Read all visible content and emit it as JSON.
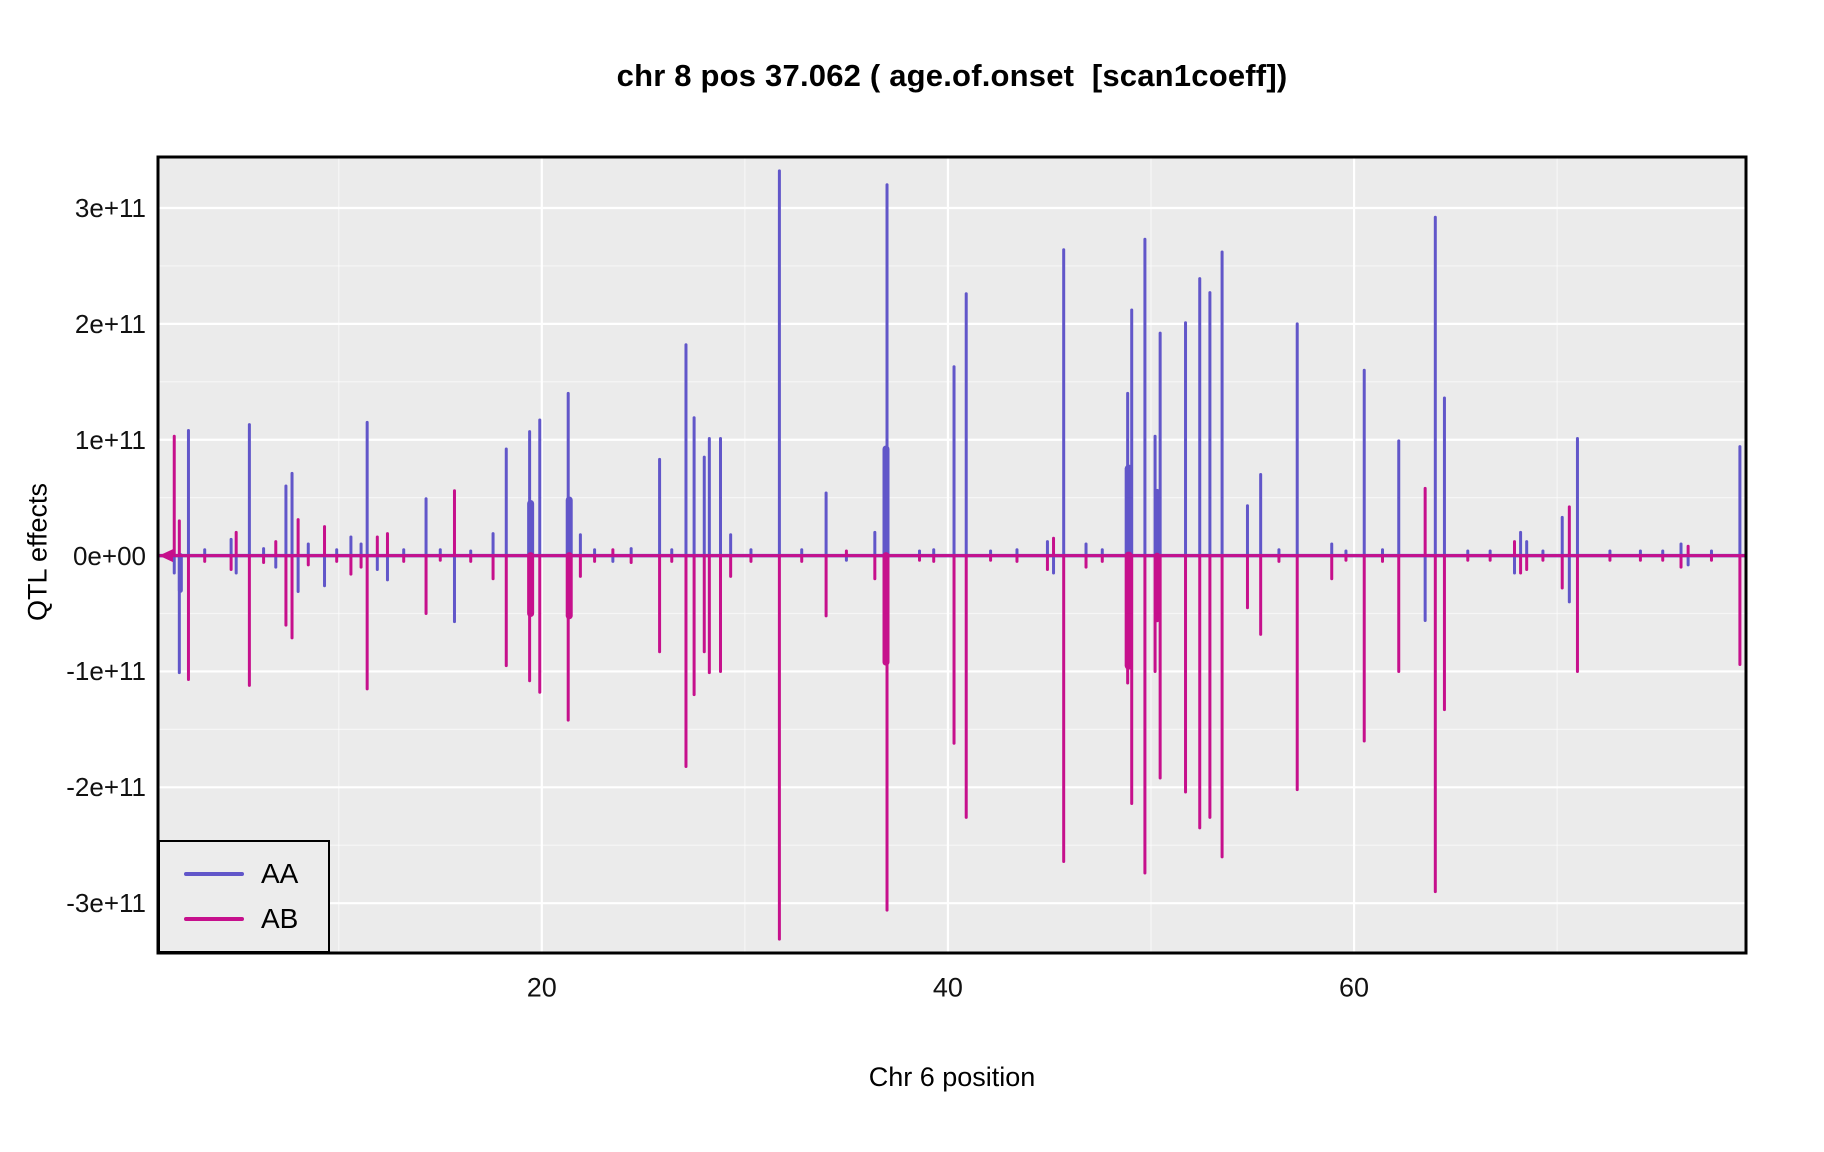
{
  "chart_data": {
    "type": "line",
    "title": "chr 8 pos 37.062 ( age.of.onset  [scan1coeff])",
    "xlabel": "Chr 6 position",
    "ylabel": "QTL effects",
    "value_scale": "values below are multiples of 1e+11",
    "xlim": [
      1.1,
      79.3
    ],
    "ylim": [
      -3.43,
      3.44
    ],
    "grid": "white major and minor gridlines on gray panel",
    "legend_position": "bottom-left",
    "colors": {
      "panel_bg": "#EBEBEB",
      "grid": "#FFFFFF",
      "border": "#000000",
      "outer_bg": "#FFFFFF"
    },
    "x_ticks": [
      {
        "value": 20,
        "label": "20"
      },
      {
        "value": 40,
        "label": "40"
      },
      {
        "value": 60,
        "label": "60"
      }
    ],
    "x_minor": [
      10,
      30,
      50,
      70
    ],
    "y_ticks": [
      {
        "value": 3,
        "label": "3e+11"
      },
      {
        "value": 2,
        "label": "2e+11"
      },
      {
        "value": 1,
        "label": "1e+11"
      },
      {
        "value": 0,
        "label": "0e+00"
      },
      {
        "value": -1,
        "label": "-1e+11"
      },
      {
        "value": -2,
        "label": "-2e+11"
      },
      {
        "value": -3,
        "label": "-3e+11"
      }
    ],
    "y_minor": [
      2.5,
      1.5,
      0.5,
      -0.5,
      -1.5,
      -2.5
    ],
    "series": [
      {
        "name": "AA",
        "color": "#6156C9"
      },
      {
        "name": "AB",
        "color": "#C6108C"
      }
    ],
    "baseline": 0,
    "baseline_arrow": true,
    "spikes_format": [
      "x",
      "AA_value",
      "AB_value",
      "optional_stroke_width_px"
    ],
    "spikes": [
      [
        1.9,
        -0.15,
        1.03
      ],
      [
        2.15,
        -1.01,
        0.3
      ],
      [
        2.2,
        -0.3,
        0,
        5
      ],
      [
        2.6,
        1.08,
        -1.07
      ],
      [
        3.4,
        0.05,
        -0.05
      ],
      [
        4.7,
        0.14,
        -0.12
      ],
      [
        4.95,
        -0.15,
        0.2
      ],
      [
        5.6,
        1.13,
        -1.12
      ],
      [
        6.3,
        0.06,
        -0.06
      ],
      [
        6.9,
        -0.1,
        0.12
      ],
      [
        7.4,
        0.6,
        -0.6
      ],
      [
        7.7,
        0.71,
        -0.71
      ],
      [
        8.0,
        -0.31,
        0.31
      ],
      [
        8.5,
        0.1,
        -0.08
      ],
      [
        9.3,
        -0.26,
        0.25
      ],
      [
        9.9,
        0.05,
        -0.05
      ],
      [
        10.6,
        0.16,
        -0.16
      ],
      [
        11.1,
        0.1,
        -0.1
      ],
      [
        11.4,
        1.15,
        -1.15
      ],
      [
        11.9,
        -0.12,
        0.16
      ],
      [
        12.4,
        -0.21,
        0.19
      ],
      [
        13.2,
        0.05,
        -0.05
      ],
      [
        14.3,
        0.49,
        -0.5
      ],
      [
        15.0,
        0.05,
        -0.04
      ],
      [
        15.7,
        -0.57,
        0.56
      ],
      [
        16.5,
        0.04,
        -0.05
      ],
      [
        17.6,
        0.19,
        -0.2
      ],
      [
        18.25,
        0.92,
        -0.95
      ],
      [
        19.4,
        1.07,
        -1.08
      ],
      [
        19.45,
        0.45,
        -0.5,
        7
      ],
      [
        19.9,
        1.17,
        -1.18
      ],
      [
        21.3,
        1.4,
        -1.42
      ],
      [
        21.35,
        0.48,
        -0.52,
        7
      ],
      [
        21.9,
        0.18,
        -0.18
      ],
      [
        22.6,
        0.05,
        -0.05
      ],
      [
        23.5,
        -0.05,
        0.05
      ],
      [
        24.4,
        0.06,
        -0.06
      ],
      [
        25.8,
        0.83,
        -0.83
      ],
      [
        26.4,
        0.05,
        -0.05
      ],
      [
        27.1,
        1.82,
        -1.82
      ],
      [
        27.5,
        1.19,
        -1.2
      ],
      [
        28.0,
        0.85,
        -0.83
      ],
      [
        28.25,
        1.01,
        -1.01
      ],
      [
        28.8,
        1.01,
        -1.0
      ],
      [
        29.3,
        0.18,
        -0.18
      ],
      [
        30.3,
        0.05,
        -0.05
      ],
      [
        31.7,
        3.32,
        -3.31
      ],
      [
        32.8,
        0.05,
        -0.05
      ],
      [
        34.0,
        0.54,
        -0.52
      ],
      [
        35.0,
        -0.04,
        0.04
      ],
      [
        36.4,
        0.2,
        -0.2
      ],
      [
        36.95,
        0.92,
        -0.92,
        7
      ],
      [
        37.0,
        3.2,
        -3.06
      ],
      [
        38.6,
        0.04,
        -0.04
      ],
      [
        39.3,
        0.05,
        -0.05
      ],
      [
        40.3,
        1.63,
        -1.62
      ],
      [
        40.9,
        2.26,
        -2.26
      ],
      [
        42.1,
        0.04,
        -0.04
      ],
      [
        43.4,
        0.05,
        -0.05
      ],
      [
        44.9,
        0.12,
        -0.12
      ],
      [
        45.2,
        -0.15,
        0.15
      ],
      [
        45.7,
        2.64,
        -2.64
      ],
      [
        46.8,
        0.1,
        -0.1
      ],
      [
        47.6,
        0.05,
        -0.05
      ],
      [
        48.85,
        1.4,
        -1.1
      ],
      [
        48.9,
        0.75,
        -0.95,
        8
      ],
      [
        49.05,
        2.12,
        -2.14
      ],
      [
        49.7,
        2.73,
        -2.74
      ],
      [
        50.2,
        1.03,
        -1.0
      ],
      [
        50.3,
        0.55,
        -0.55,
        6
      ],
      [
        50.45,
        1.92,
        -1.92
      ],
      [
        51.7,
        2.01,
        -2.04
      ],
      [
        52.4,
        2.39,
        -2.35
      ],
      [
        52.9,
        2.27,
        -2.26
      ],
      [
        53.5,
        2.62,
        -2.6
      ],
      [
        54.75,
        0.43,
        -0.45
      ],
      [
        55.4,
        0.7,
        -0.68
      ],
      [
        56.3,
        0.05,
        -0.05
      ],
      [
        57.2,
        2.0,
        -2.02
      ],
      [
        58.9,
        0.1,
        -0.2
      ],
      [
        59.6,
        0.04,
        -0.04
      ],
      [
        60.5,
        1.6,
        -1.6
      ],
      [
        61.4,
        0.05,
        -0.05
      ],
      [
        62.2,
        0.99,
        -1.0
      ],
      [
        63.5,
        -0.56,
        0.58
      ],
      [
        64.0,
        2.92,
        -2.9
      ],
      [
        64.45,
        1.36,
        -1.33
      ],
      [
        65.6,
        0.04,
        -0.04
      ],
      [
        66.7,
        0.04,
        -0.04
      ],
      [
        67.9,
        -0.15,
        0.12
      ],
      [
        68.2,
        0.2,
        -0.15
      ],
      [
        68.5,
        0.12,
        -0.12
      ],
      [
        69.3,
        0.04,
        -0.04
      ],
      [
        70.25,
        0.33,
        -0.28
      ],
      [
        70.6,
        -0.4,
        0.42
      ],
      [
        71.0,
        1.01,
        -1.0
      ],
      [
        72.6,
        0.04,
        -0.04
      ],
      [
        74.1,
        0.04,
        -0.04
      ],
      [
        75.2,
        0.04,
        -0.04
      ],
      [
        76.1,
        0.1,
        -0.1
      ],
      [
        76.45,
        -0.08,
        0.08
      ],
      [
        77.6,
        0.04,
        -0.04
      ],
      [
        79.0,
        0.94,
        -0.94
      ]
    ]
  },
  "legend": {
    "items": [
      {
        "label": "AA"
      },
      {
        "label": "AB"
      }
    ]
  }
}
